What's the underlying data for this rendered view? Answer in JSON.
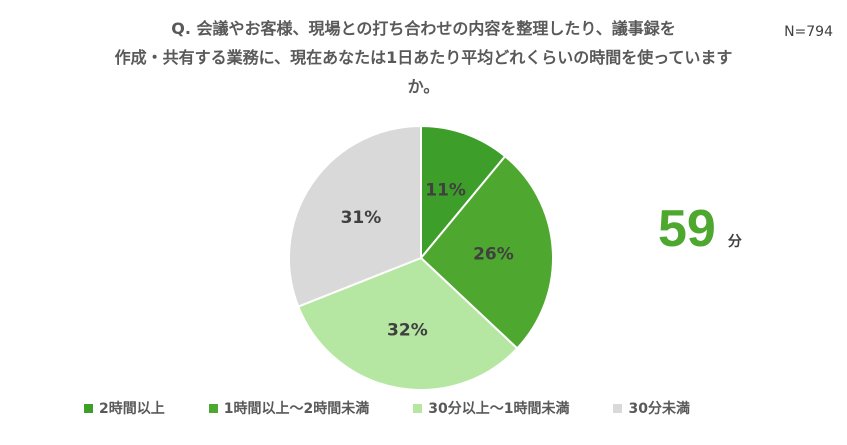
{
  "header": {
    "title_lines": [
      "Q.  会議やお客様、現場との打ち合わせの内容を整理したり、議事録を",
      "作成・共有する業務に、現在あなたは1日あたり平均どれくらいの時間を使っていますか。"
    ],
    "title_line1": "Q.  会議やお客様、現場との打ち合わせの内容を整理したり、議事録を",
    "title_line2": "作成・共有する業務に、現在あなたは1日あたり平均どれくらいの時間を使っています",
    "title_line3": "か。",
    "sample_size": "N=794"
  },
  "average": {
    "value": "59",
    "unit": "分"
  },
  "chart_data": {
    "type": "pie",
    "start_angle": "12 o'clock, clockwise",
    "series": [
      {
        "name": "2時間以上",
        "value": 11,
        "label": "11%",
        "color": "#3e9e2a"
      },
      {
        "name": "1時間以上～2時間未満",
        "value": 26,
        "label": "26%",
        "color": "#4ea72e"
      },
      {
        "name": "30分以上～1時間未満",
        "value": 32,
        "label": "32%",
        "color": "#b5e6a2"
      },
      {
        "name": "30分未満",
        "value": 31,
        "label": "31%",
        "color": "#d9d9d9"
      }
    ],
    "legend_position": "bottom"
  }
}
